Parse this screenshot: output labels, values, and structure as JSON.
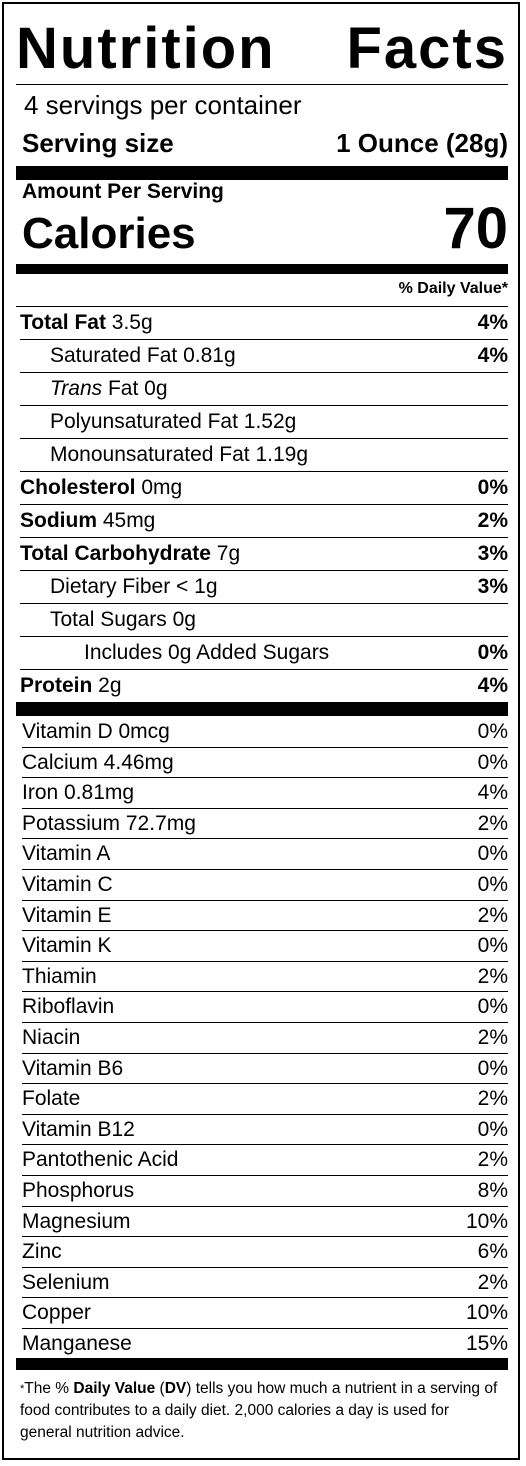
{
  "title": [
    "Nutrition",
    "Facts"
  ],
  "servings_per_container": "4 servings per container",
  "serving_size": {
    "label": "Serving size",
    "value": "1 Ounce (28g)"
  },
  "amount_per_serving": "Amount Per Serving",
  "calories": {
    "label": "Calories",
    "value": "70"
  },
  "daily_value_header": "% Daily Value*",
  "nutrients": [
    {
      "name": "Total Fat",
      "amount": " 3.5g",
      "dv": "4%",
      "bold": true,
      "indent": 0
    },
    {
      "name": "Saturated Fat",
      "amount": " 0.81g",
      "dv": "4%",
      "bold": false,
      "indent": 1
    },
    {
      "name": "Trans",
      "amount": " Fat 0g",
      "dv": "",
      "bold": false,
      "indent": 1,
      "italic": true
    },
    {
      "name": "Polyunsaturated Fat",
      "amount": " 1.52g",
      "dv": "",
      "bold": false,
      "indent": 1
    },
    {
      "name": "Monounsaturated Fat",
      "amount": " 1.19g",
      "dv": "",
      "bold": false,
      "indent": 1
    },
    {
      "name": "Cholesterol",
      "amount": " 0mg",
      "dv": "0%",
      "bold": true,
      "indent": 0
    },
    {
      "name": "Sodium",
      "amount": " 45mg",
      "dv": "2%",
      "bold": true,
      "indent": 0
    },
    {
      "name": "Total Carbohydrate",
      "amount": " 7g",
      "dv": "3%",
      "bold": true,
      "indent": 0
    },
    {
      "name": "Dietary Fiber",
      "amount": " < 1g",
      "dv": "3%",
      "bold": false,
      "indent": 1
    },
    {
      "name": "Total Sugars",
      "amount": " 0g",
      "dv": "",
      "bold": false,
      "indent": 1
    },
    {
      "name": "Includes 0g Added Sugars",
      "amount": "",
      "dv": "0%",
      "bold": false,
      "indent": 2
    },
    {
      "name": "Protein",
      "amount": " 2g",
      "dv": "4%",
      "bold": true,
      "indent": 0
    }
  ],
  "vitamins": [
    {
      "name": "Vitamin D 0mcg",
      "dv": "0%"
    },
    {
      "name": "Calcium 4.46mg",
      "dv": "0%"
    },
    {
      "name": "Iron 0.81mg",
      "dv": "4%"
    },
    {
      "name": "Potassium 72.7mg",
      "dv": "2%"
    },
    {
      "name": "Vitamin A",
      "dv": "0%"
    },
    {
      "name": "Vitamin C",
      "dv": "0%"
    },
    {
      "name": "Vitamin E",
      "dv": "2%"
    },
    {
      "name": "Vitamin K",
      "dv": "0%"
    },
    {
      "name": "Thiamin",
      "dv": "2%"
    },
    {
      "name": "Riboflavin",
      "dv": "0%"
    },
    {
      "name": "Niacin",
      "dv": "2%"
    },
    {
      "name": "Vitamin B6",
      "dv": "0%"
    },
    {
      "name": "Folate",
      "dv": "2%"
    },
    {
      "name": "Vitamin B12",
      "dv": "0%"
    },
    {
      "name": "Pantothenic Acid",
      "dv": "2%"
    },
    {
      "name": "Phosphorus",
      "dv": "8%"
    },
    {
      "name": "Magnesium",
      "dv": "10%"
    },
    {
      "name": "Zinc",
      "dv": "6%"
    },
    {
      "name": "Selenium",
      "dv": "2%"
    },
    {
      "name": "Copper",
      "dv": "10%"
    },
    {
      "name": "Manganese",
      "dv": "15%"
    }
  ],
  "footnote": {
    "star": "*",
    "parts": [
      "The % ",
      "Daily Value",
      " (",
      "DV",
      ") tells you how much a nutrient in a serving of food contributes to a daily diet. 2,000 calories a day is used for general nutrition advice."
    ]
  }
}
